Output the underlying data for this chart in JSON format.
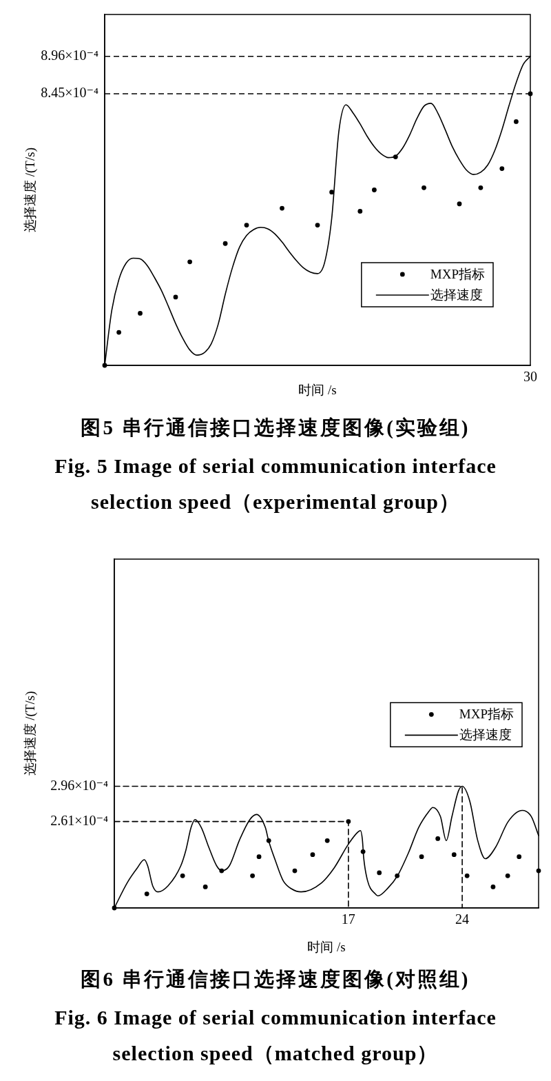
{
  "chart_data": [
    {
      "type": "line",
      "title": "图5 串行通信接口选择速度图像(实验组)",
      "subtitle": "Fig. 5 Image of serial communication interface selection speed（experimental group）",
      "xlabel": "时间 /s",
      "ylabel": "选择速度 /(T/s)",
      "categories": [
        null,
        null,
        null,
        null,
        null,
        null,
        null,
        null,
        null,
        null,
        null,
        null,
        null,
        null,
        null,
        null,
        null,
        null,
        null,
        null,
        null,
        null,
        null,
        null,
        null,
        null,
        null,
        null,
        null,
        null,
        null,
        null,
        null,
        null,
        null,
        null,
        null,
        null,
        null,
        null,
        null,
        null,
        null,
        null,
        null,
        null,
        null,
        null,
        null,
        null,
        null,
        null,
        null,
        null,
        null,
        null,
        null,
        null,
        null,
        null,
        "30"
      ],
      "ylim": [
        0.000475,
        0.000953
      ],
      "yticks": [
        {
          "value": 0.000845,
          "label": "8.45×10⁻⁴"
        },
        {
          "value": 0.000896,
          "label": "8.96×10⁻⁴"
        }
      ],
      "legend": "bottom right",
      "ref_lines": [
        {
          "axis": "y",
          "value": 0.000896,
          "color": "#000000",
          "line_style": "dashed"
        },
        {
          "axis": "y",
          "value": 0.000845,
          "color": "#000000",
          "line_style": "dashed"
        }
      ],
      "series": [
        {
          "name": "MXP指标",
          "type": "scatter",
          "color": "#000000",
          "marker": "circle",
          "values": [
            0.000475,
            null,
            0.00052,
            null,
            null,
            0.000546,
            null,
            null,
            null,
            null,
            0.000568,
            null,
            0.000616,
            null,
            null,
            null,
            null,
            0.000641,
            null,
            null,
            0.000666,
            null,
            null,
            null,
            null,
            0.000689,
            null,
            null,
            null,
            null,
            0.000666,
            null,
            0.000711,
            null,
            null,
            null,
            0.000685,
            null,
            0.000714,
            null,
            null,
            0.000759,
            null,
            null,
            null,
            0.000717,
            null,
            null,
            null,
            null,
            0.000695,
            null,
            null,
            0.000717,
            null,
            null,
            0.000743,
            null,
            0.000807,
            null,
            0.000845
          ]
        },
        {
          "name": "选择速度",
          "color": "#000000",
          "values": [
            0.000475,
            0.00055,
            0.000592,
            0.000614,
            0.000621,
            0.00062,
            0.000611,
            0.000595,
            0.000577,
            0.000555,
            0.000532,
            0.000512,
            0.000496,
            0.000489,
            0.000492,
            0.000504,
            0.000531,
            0.000572,
            0.000608,
            0.000636,
            0.000652,
            0.00066,
            0.000663,
            0.000661,
            0.000654,
            0.000643,
            0.00063,
            0.000618,
            0.000608,
            0.000602,
            0.0006,
            0.000615,
            0.000675,
            0.000793,
            0.00083,
            0.000819,
            0.000804,
            0.000787,
            0.000773,
            0.000763,
            0.000758,
            0.00076,
            0.000771,
            0.000789,
            0.000811,
            0.000828,
            0.000832,
            0.000818,
            0.000796,
            0.000773,
            0.000755,
            0.000741,
            0.000735,
            0.000738,
            0.000748,
            0.000768,
            0.000796,
            0.000829,
            0.00086,
            0.000885,
            0.000896
          ]
        }
      ]
    },
    {
      "type": "line",
      "title": "图6 串行通信接口选择速度图像(对照组)",
      "subtitle": "Fig. 6 Image of serial communication interface selection speed（matched group）",
      "xlabel": "时间 /s",
      "ylabel": "选择速度 /(T/s)",
      "xlim": [
        2.6,
        28.7
      ],
      "xticks": [
        17,
        24
      ],
      "ylim": [
        0.000175,
        0.000522
      ],
      "yticks": [
        {
          "value": 0.000261,
          "label": "2.61×10⁻⁴"
        },
        {
          "value": 0.000296,
          "label": "2.96×10⁻⁴"
        }
      ],
      "legend": "right",
      "series": [
        {
          "name": "MXP指标",
          "type": "scatter",
          "color": "#000000",
          "marker": "circle",
          "x": [
            2.6,
            4.6,
            6.8,
            8.2,
            9.2,
            11.1,
            11.5,
            12.1,
            13.7,
            14.8,
            15.7,
            17,
            17.9,
            18.9,
            20.0,
            21.5,
            22.5,
            23.5,
            24.3,
            25.9,
            26.8,
            27.5,
            28.7
          ],
          "values": [
            0.000175,
            0.000189,
            0.000207,
            0.000196,
            0.000212,
            0.000207,
            0.000226,
            0.000242,
            0.000212,
            0.000228,
            0.000242,
            0.000261,
            0.000231,
            0.00021,
            0.000207,
            0.000226,
            0.000244,
            0.000228,
            0.000207,
            0.000196,
            0.000207,
            0.000226,
            0.000212
          ]
        },
        {
          "name": "选择速度",
          "color": "#000000",
          "x": [
            2.6,
            3.39,
            4.02,
            4.44,
            4.65,
            4.96,
            5.28,
            5.9,
            6.69,
            7.01,
            7.32,
            7.57,
            7.95,
            8.42,
            8.89,
            9.21,
            9.68,
            10.31,
            10.94,
            11.35,
            11.89,
            12.09,
            12.51,
            12.99,
            13.5,
            14.09,
            15.35,
            16.13,
            16.98,
            17.55,
            17.74,
            17.86,
            17.94,
            18.18,
            18.65,
            18.81,
            19.44,
            20.02,
            20.7,
            21.32,
            21.95,
            22.19,
            22.66,
            23.02,
            23.37,
            23.76,
            24,
            24.47,
            24.94,
            25.42,
            26.04,
            26.83,
            27.7,
            28.25,
            28.7
          ],
          "values": [
            0.000175,
            0.0002,
            0.000215,
            0.000223,
            0.000217,
            0.000197,
            0.000191,
            0.000197,
            0.000217,
            0.000233,
            0.000255,
            0.000263,
            0.000255,
            0.000235,
            0.000217,
            0.000212,
            0.000217,
            0.000243,
            0.000263,
            0.000268,
            0.000255,
            0.000242,
            0.000222,
            0.000202,
            0.000194,
            0.000191,
            0.0002,
            0.000215,
            0.000238,
            0.00025,
            0.000252,
            0.000243,
            0.000225,
            0.000202,
            0.000189,
            0.000187,
            0.000195,
            0.000207,
            0.00023,
            0.000255,
            0.000271,
            0.000275,
            0.000266,
            0.000242,
            0.000266,
            0.000291,
            0.000296,
            0.000281,
            0.000243,
            0.000224,
            0.000235,
            0.000261,
            0.000272,
            0.000266,
            0.000247
          ]
        },
        {
          "color": "#000000",
          "line_style": "dashed",
          "x": [
            2.6,
            17,
            17
          ],
          "values": [
            0.000261,
            0.000261,
            0.000175
          ]
        },
        {
          "color": "#000000",
          "line_style": "dashed",
          "x": [
            2.6,
            24,
            24
          ],
          "values": [
            0.000296,
            0.000296,
            0.000175
          ]
        }
      ]
    }
  ]
}
